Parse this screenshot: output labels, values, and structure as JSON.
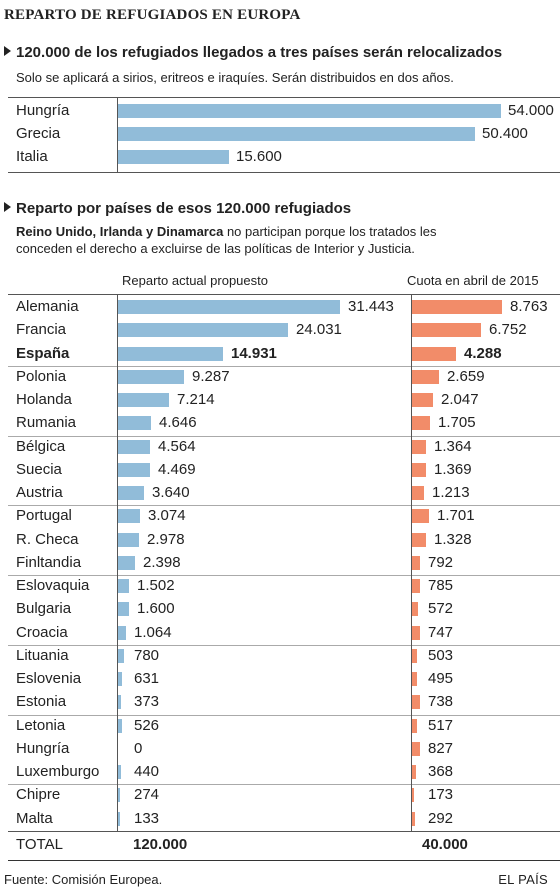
{
  "title": "REPARTO DE REFUGIADOS EN EUROPA",
  "section1": {
    "title": "120.000 de los refugiados llegados a tres países serán relocalizados",
    "subtitle": "Solo se aplicará a sirios, eritreos e iraquíes. Serán distribuidos en dos años."
  },
  "section2": {
    "title": "Reparto por países de esos 120.000 refugiados",
    "subtitle_bold": "Reino Unido, Irlanda y Dinamarca",
    "subtitle_rest": " no participan porque los tratados les",
    "subtitle_line2": "conceden el derecho a excluirse de las políticas de Interior y Justicia."
  },
  "chart_data": [
    {
      "type": "bar",
      "orientation": "horizontal",
      "categories": [
        "Hungría",
        "Grecia",
        "Italia"
      ],
      "values": [
        54000,
        50400,
        15600
      ],
      "value_labels": [
        "54.000",
        "50.400",
        "15.600"
      ],
      "color": "#91bcd9"
    },
    {
      "type": "bar",
      "orientation": "horizontal",
      "columns": [
        "Reparto actual propuesto",
        "Cuota en abril de 2015"
      ],
      "categories": [
        "Alemania",
        "Francia",
        "España",
        "Polonia",
        "Holanda",
        "Rumania",
        "Bélgica",
        "Suecia",
        "Austria",
        "Portugal",
        "R. Checa",
        "Finltandia",
        "Eslovaquia",
        "Bulgaria",
        "Croacia",
        "Lituania",
        "Eslovenia",
        "Estonia",
        "Letonia",
        "Hungría",
        "Luxemburgo",
        "Chipre",
        "Malta"
      ],
      "highlight": "España",
      "series": [
        {
          "name": "Reparto actual propuesto",
          "color": "#91bcd9",
          "values": [
            31443,
            24031,
            14931,
            9287,
            7214,
            4646,
            4564,
            4469,
            3640,
            3074,
            2978,
            2398,
            1502,
            1600,
            1064,
            780,
            631,
            373,
            526,
            0,
            440,
            274,
            133
          ],
          "value_labels": [
            "31.443",
            "24.031",
            "14.931",
            "9.287",
            "7.214",
            "4.646",
            "4.564",
            "4.469",
            "3.640",
            "3.074",
            "2.978",
            "2.398",
            "1.502",
            "1.600",
            "1.064",
            "780",
            "631",
            "373",
            "526",
            "0",
            "440",
            "274",
            "133"
          ]
        },
        {
          "name": "Cuota en abril de 2015",
          "color": "#f28c69",
          "values": [
            8763,
            6752,
            4288,
            2659,
            2047,
            1705,
            1364,
            1369,
            1213,
            1701,
            1328,
            792,
            785,
            572,
            747,
            503,
            495,
            738,
            517,
            827,
            368,
            173,
            292
          ],
          "value_labels": [
            "8.763",
            "6.752",
            "4.288",
            "2.659",
            "2.047",
            "1.705",
            "1.364",
            "1.369",
            "1.213",
            "1.701",
            "1.328",
            "792",
            "785",
            "572",
            "747",
            "503",
            "495",
            "738",
            "517",
            "827",
            "368",
            "173",
            "292"
          ]
        }
      ],
      "groups": [
        [
          0,
          1,
          2
        ],
        [
          3,
          4,
          5
        ],
        [
          6,
          7,
          8
        ],
        [
          9,
          10,
          11
        ],
        [
          12,
          13,
          14
        ],
        [
          15,
          16,
          17
        ],
        [
          18,
          19,
          20
        ],
        [
          21,
          22
        ]
      ],
      "total": {
        "label": "TOTAL",
        "values": [
          "120.000",
          "40.000"
        ]
      }
    }
  ],
  "footer": {
    "source": "Fuente: Comisión Europea.",
    "brand": "EL PAÍS"
  }
}
